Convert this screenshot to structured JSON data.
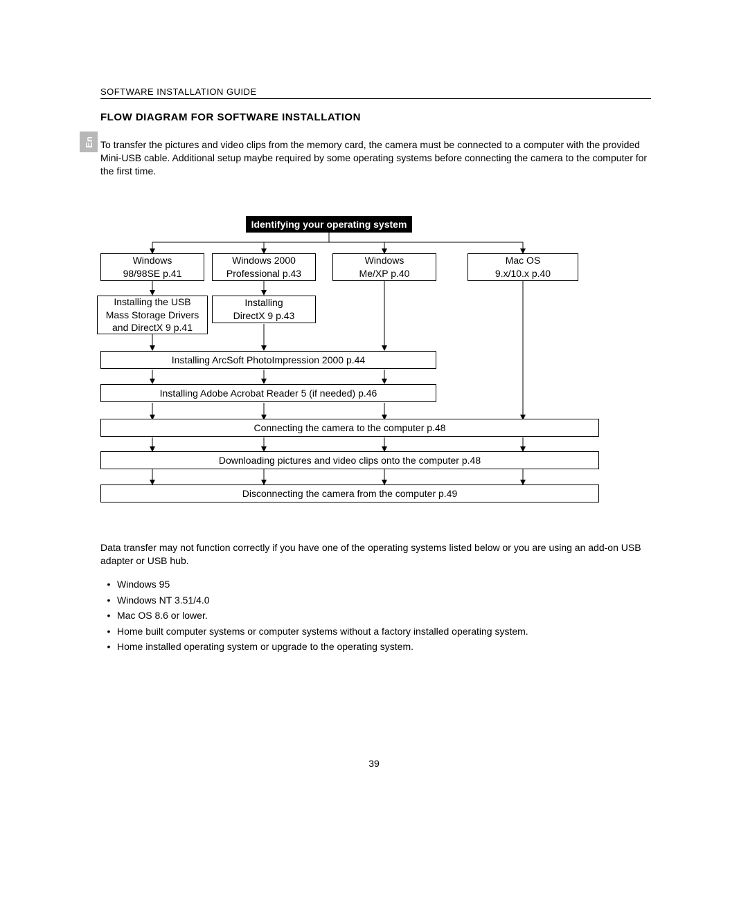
{
  "header": "SOFTWARE INSTALLATION GUIDE",
  "title": "FLOW DIAGRAM FOR SOFTWARE INSTALLATION",
  "lang_tab": "En",
  "intro": "To transfer the pictures and video clips from the memory card, the camera must be connected to a computer with the provided Mini-USB cable.  Additional setup maybe required by some operating systems before connecting the camera to the computer for the first time.",
  "flow": {
    "root": "Identifying your operating system",
    "os": {
      "win98": "Windows\n98/98SE p.41",
      "win2000": "Windows 2000\nProfessional p.43",
      "winme": "Windows\nMe/XP p.40",
      "mac": "Mac OS\n9.x/10.x p.40"
    },
    "step_win98": "Installing the USB\nMass Storage Drivers\nand DirectX 9 p.41",
    "step_win2000": "Installing\nDirectX 9 p.43",
    "arcsoft": "Installing ArcSoft PhotoImpression 2000 p.44",
    "acrobat": "Installing Adobe Acrobat Reader 5 (if needed) p.46",
    "connect": "Connecting the camera to the computer p.48",
    "download": "Downloading pictures and video clips onto the computer p.48",
    "disconnect": "Disconnecting the camera from the computer p.49"
  },
  "notes_intro": "Data transfer may not function correctly if you have one of the operating systems listed below or you are using an add-on USB adapter or USB hub.",
  "bullets": [
    "Windows 95",
    "Windows NT 3.51/4.0",
    "Mac OS 8.6 or lower.",
    "Home built computer systems or computer systems without a factory installed operating system.",
    "Home installed operating system or upgrade to the operating system."
  ],
  "page_number": "39",
  "colors": {
    "tab_bg": "#b8b8b8",
    "root_bg": "#000000",
    "root_fg": "#ffffff",
    "line": "#000000"
  }
}
